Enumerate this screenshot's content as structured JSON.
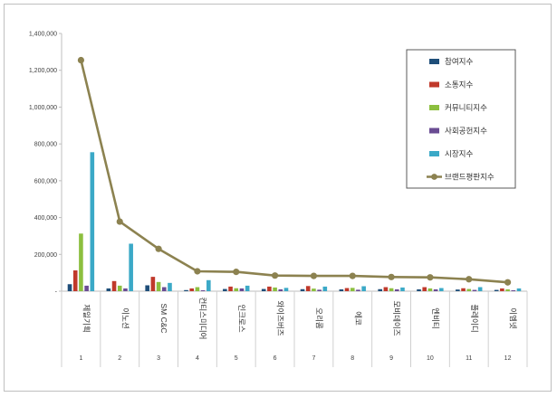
{
  "chart_data": {
    "type": "bar",
    "categories": [
      "제일기획",
      "이노션",
      "SM C&C",
      "컨티스미디어",
      "인크로스",
      "와이즈버즈",
      "오리콤",
      "에코",
      "모비데이즈",
      "엔비티",
      "플레이디",
      "이엠넷"
    ],
    "numbers": [
      "1",
      "2",
      "3",
      "4",
      "5",
      "6",
      "7",
      "8",
      "9",
      "10",
      "11",
      "12"
    ],
    "ylim": [
      0,
      1400000
    ],
    "yticks": [
      0,
      200000,
      400000,
      600000,
      800000,
      1000000,
      1200000,
      1400000
    ],
    "ytick_labels": [
      "-",
      "200,000",
      "400,000",
      "600,000",
      "800,000",
      "1,000,000",
      "1,200,000",
      "1,400,000"
    ],
    "series": [
      {
        "name": "참여지수",
        "type": "bar",
        "color": "#1f4e79",
        "values": [
          38000,
          15000,
          32000,
          6000,
          12000,
          12000,
          11000,
          10000,
          11000,
          10000,
          9000,
          7000
        ]
      },
      {
        "name": "소통지수",
        "type": "bar",
        "color": "#c0392b",
        "values": [
          113000,
          55000,
          78000,
          15000,
          25000,
          25000,
          28000,
          17000,
          22000,
          22000,
          16000,
          15000
        ]
      },
      {
        "name": "커뮤니티지수",
        "type": "bar",
        "color": "#8cbf3f",
        "values": [
          313000,
          30000,
          50000,
          22000,
          16000,
          20000,
          14000,
          18000,
          16000,
          15000,
          12000,
          10000
        ]
      },
      {
        "name": "사회공헌지수",
        "type": "bar",
        "color": "#6a4c93",
        "values": [
          30000,
          15000,
          22000,
          5000,
          15000,
          10000,
          8000,
          8000,
          10000,
          10000,
          7000,
          5000
        ]
      },
      {
        "name": "시장지수",
        "type": "bar",
        "color": "#3ba9c7",
        "values": [
          755000,
          258000,
          45000,
          60000,
          30000,
          18000,
          25000,
          27000,
          20000,
          17000,
          22000,
          15000
        ]
      },
      {
        "name": "브랜드평판지수",
        "type": "line",
        "color": "#8c8250",
        "values": [
          1255000,
          378000,
          230000,
          108000,
          105000,
          85000,
          83000,
          83000,
          77000,
          75000,
          65000,
          48000
        ]
      }
    ],
    "legend_position": "top-right",
    "grid": false
  }
}
